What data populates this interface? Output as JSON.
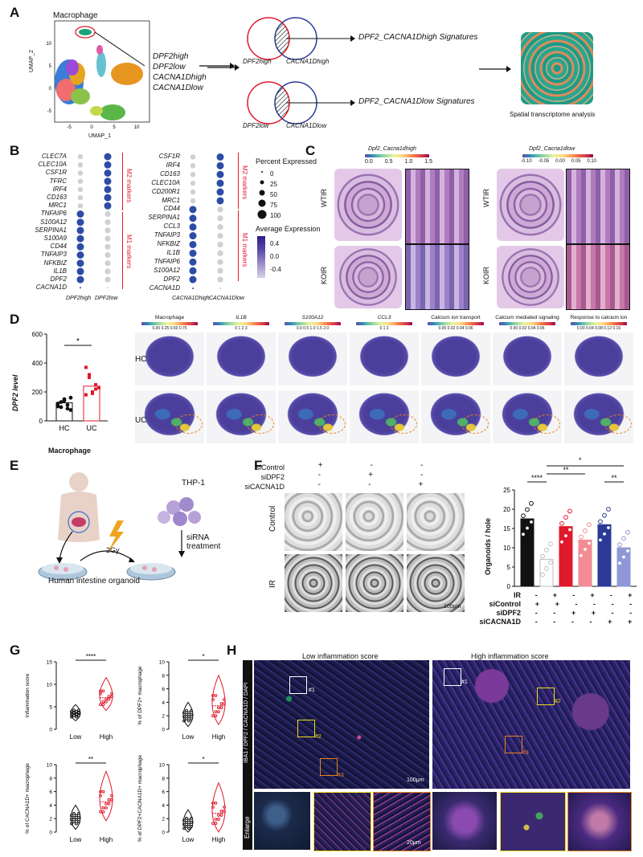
{
  "panels": {
    "A": "A",
    "B": "B",
    "C": "C",
    "D": "D",
    "E": "E",
    "F": "F",
    "G": "G",
    "H": "H"
  },
  "A": {
    "macrophage": "Macrophage",
    "umap_x": "UMAP_1",
    "umap_y": "UMAP_2",
    "x_ticks": [
      "-5",
      "0",
      "5",
      "10"
    ],
    "y_ticks": [
      "10",
      "5",
      "0",
      "-5"
    ],
    "groups": [
      "DPF2high",
      "DPF2low",
      "CACNA1Dhigh",
      "CACNA1Dlow"
    ],
    "venn_high_left": "DPF2high",
    "venn_high_right": "CACNA1Dhigh",
    "venn_low_left": "DPF2low",
    "venn_low_right": "CACNA1Dlow",
    "sig_high": "DPF2_CACNA1Dhigh Signatures",
    "sig_low": "DPF2_CACNA1Dlow Signatures",
    "spatial": "Spatial transcriptome analysis"
  },
  "B": {
    "left_genes": [
      "CLEC7A",
      "CLEC10A",
      "CSF1R",
      "TFRC",
      "IRF4",
      "CD163",
      "MRC1",
      "TNFAIP6",
      "S100A12",
      "SERPINA1",
      "S100A9",
      "CD44",
      "TNFAIP3",
      "NFKBIZ",
      "IL1B",
      "DPF2",
      "CACNA1D"
    ],
    "left_x": [
      "DPF2high",
      "DPF2low"
    ],
    "right_genes": [
      "CSF1R",
      "IRF4",
      "CD163",
      "CLEC10A",
      "CD200R1",
      "MRC1",
      "CD44",
      "SERPINA1",
      "CCL3",
      "TNFAIP3",
      "NFKBIZ",
      "IL1B",
      "TNFAIP6",
      "S100A12",
      "DPF2",
      "CACNA1D"
    ],
    "right_x": [
      "CACNA1Dhigh",
      "CACNA1Dlow"
    ],
    "m2": "M2 markers",
    "m1": "M1 markers",
    "pct_title": "Percent Expressed",
    "pct_values": [
      "0",
      "25",
      "50",
      "75",
      "100"
    ],
    "avg_title": "Average Expression",
    "avg_values": [
      "0.4",
      "0.0",
      "-0.4"
    ]
  },
  "C": {
    "title_high": "Dpf2_Cacna1dhigh",
    "title_low": "Dpf2_Cacna1dlow",
    "ticks_high": [
      "0.0",
      "0.5",
      "1.0",
      "1.5"
    ],
    "ticks_low": [
      "-0.10",
      "-0.05",
      "0.00",
      "0.05",
      "0.10"
    ],
    "rows": [
      "WTIR",
      "KOIR"
    ]
  },
  "D": {
    "ylabel": "DPF2 level",
    "y_ticks": [
      "600",
      "400",
      "200",
      "0"
    ],
    "groups": [
      "HC",
      "UC"
    ],
    "xlabel": "Macrophage",
    "sig": "*",
    "map_titles": [
      "Macrophage",
      "IL1B",
      "S100A12",
      "CCL3",
      "Calcium ion transport",
      "Calcium mediated signaling",
      "Response to calcium ion"
    ],
    "map_ticks": [
      "0.00 0.25 0.50 0.75",
      "0 1 2 3",
      "0.0 0.5 1.0 1.5 2.0",
      "0 1 2",
      "0.00 0.02 0.04 0.06",
      "0.00 0.02 0.04 0.06",
      "0.00 0.04 0.08 0.12 0.16"
    ],
    "rows": [
      "HC",
      "UC"
    ]
  },
  "E": {
    "thp1": "THP-1",
    "sirna": "siRNA treatment",
    "dose": "2Gy",
    "organoid": "Human intestine organoid"
  },
  "F": {
    "conditions": [
      "siControl",
      "siDPF2",
      "siCACNA1D"
    ],
    "signs": [
      [
        "+",
        "-",
        "-"
      ],
      [
        "-",
        "+",
        "-"
      ],
      [
        "-",
        "-",
        "+"
      ]
    ],
    "rows": [
      "Control",
      "IR"
    ],
    "scale": "100μm",
    "ylabel": "Organoids / hole",
    "y_ticks": [
      "25",
      "20",
      "15",
      "10",
      "5",
      "0"
    ],
    "ir_label": "IR",
    "table_rows": [
      "IR",
      "siControl",
      "siDPF2",
      "siCACNA1D"
    ],
    "table_signs": [
      [
        "-",
        "+",
        "-",
        "+",
        "-",
        "+"
      ],
      [
        "+",
        "+",
        "-",
        "-",
        "-",
        "-"
      ],
      [
        "-",
        "-",
        "+",
        "+",
        "-",
        "-"
      ],
      [
        "-",
        "-",
        "-",
        "-",
        "+",
        "+"
      ]
    ],
    "sig": [
      "****",
      "**",
      "*",
      "**"
    ]
  },
  "G": {
    "plots": [
      {
        "ylabel": "Inflammation score",
        "ticks": [
          "15",
          "10",
          "5",
          "0"
        ],
        "sig": "****"
      },
      {
        "ylabel": "% of DPF2+ macrophage",
        "ticks": [
          "10",
          "8",
          "6",
          "4",
          "2",
          "0"
        ],
        "sig": "*"
      },
      {
        "ylabel": "% of CACNA1D+ macrophage",
        "ticks": [
          "10",
          "8",
          "6",
          "4",
          "2",
          "0"
        ],
        "sig": "**"
      },
      {
        "ylabel": "% of DPF2+CACNA1D+ macrophage",
        "ticks": [
          "10",
          "8",
          "6",
          "4",
          "2",
          "0"
        ],
        "sig": "*"
      }
    ],
    "x": [
      "Low",
      "High"
    ]
  },
  "H": {
    "low": "Low inflammation score",
    "high": "High inflammation score",
    "stain": "IBA1 / DPF2 / CACNA1D / DAPI",
    "enlarge": "Enlarge",
    "boxes": [
      "#1",
      "#2",
      "#3"
    ],
    "scale_big": "100μm",
    "scale_small": "20μm"
  },
  "colors": {
    "red": "#e0192b",
    "blue": "#2b3a96",
    "black": "#111111",
    "pink": "#f28b93",
    "lightblue": "#8e98d6",
    "grey": "#bfbfbf"
  }
}
